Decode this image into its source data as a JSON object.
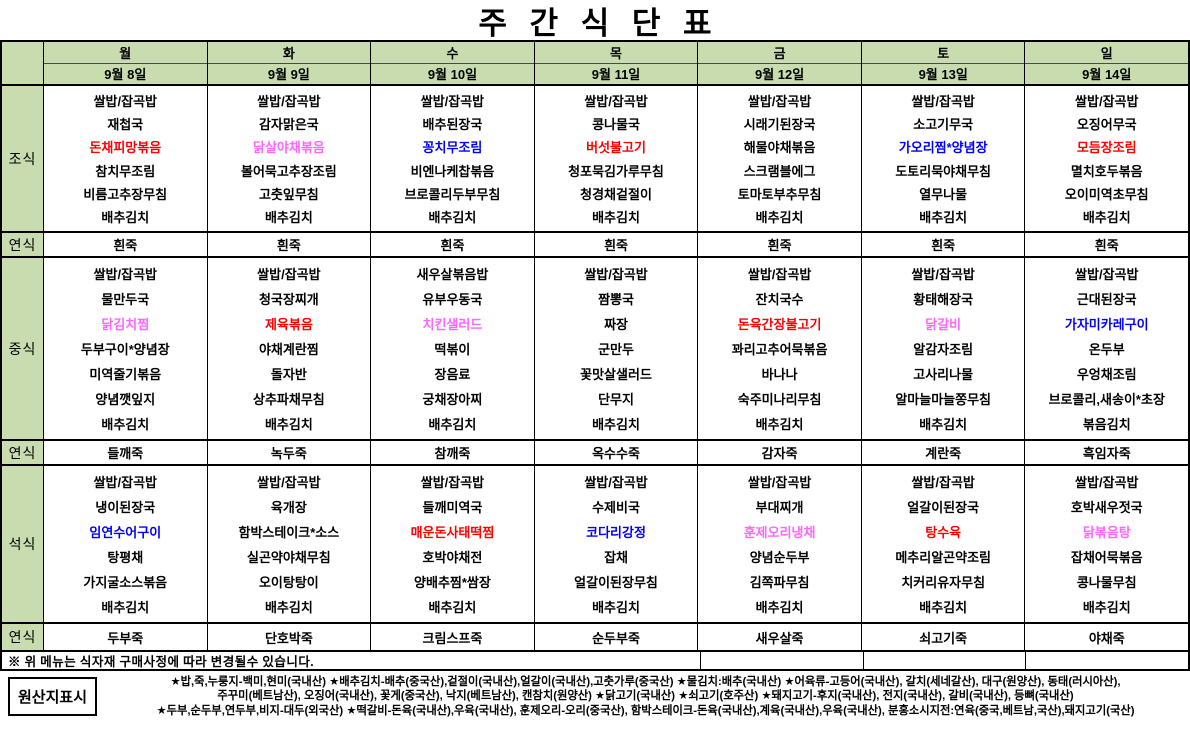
{
  "title": "주 간 식 단 표",
  "colors": {
    "red": "#ff0000",
    "pink": "#ff66ff",
    "blue": "#0000ff",
    "header_green": "#c9dcb0"
  },
  "days": [
    {
      "name": "월",
      "date": "9월 8일"
    },
    {
      "name": "화",
      "date": "9월 9일"
    },
    {
      "name": "수",
      "date": "9월 10일"
    },
    {
      "name": "목",
      "date": "9월 11일"
    },
    {
      "name": "금",
      "date": "9월 12일"
    },
    {
      "name": "토",
      "date": "9월 13일"
    },
    {
      "name": "일",
      "date": "9월 14일"
    }
  ],
  "sections": [
    {
      "label": "조식",
      "type": "meal",
      "columns": [
        [
          "쌀밥/잡곡밥",
          "재첩국",
          {
            "t": "돈채피망볶음",
            "c": "red"
          },
          "참치무조림",
          "비름고추장무침",
          "배추김치"
        ],
        [
          "쌀밥/잡곡밥",
          "감자맑은국",
          {
            "t": "닭살야채볶음",
            "c": "pink"
          },
          "볼어묵고추장조림",
          "고춧잎무침",
          "배추김치"
        ],
        [
          "쌀밥/잡곡밥",
          "배추된장국",
          {
            "t": "꽁치무조림",
            "c": "blue"
          },
          "비엔나케찹볶음",
          "브로콜리두부무침",
          "배추김치"
        ],
        [
          "쌀밥/잡곡밥",
          "콩나물국",
          {
            "t": "버섯불고기",
            "c": "red"
          },
          "청포묵김가루무침",
          "청경채겉절이",
          "배추김치"
        ],
        [
          "쌀밥/잡곡밥",
          "시래기된장국",
          "해물야채볶음",
          "스크램블에그",
          "토마토부추무침",
          "배추김치"
        ],
        [
          "쌀밥/잡곡밥",
          "소고기무국",
          {
            "t": "가오리찜*양념장",
            "c": "blue"
          },
          "도토리묵야채무침",
          "열무나물",
          "배추김치"
        ],
        [
          "쌀밥/잡곡밥",
          "오징어무국",
          {
            "t": "모듬장조림",
            "c": "red"
          },
          "멸치호두볶음",
          "오이미역초무침",
          "배추김치"
        ]
      ]
    },
    {
      "label": "연식",
      "type": "soft",
      "columns": [
        "흰죽",
        "흰죽",
        "흰죽",
        "흰죽",
        "흰죽",
        "흰죽",
        "흰죽"
      ]
    },
    {
      "label": "중식",
      "type": "meal",
      "columns": [
        [
          "쌀밥/잡곡밥",
          "물만두국",
          {
            "t": "닭김치찜",
            "c": "pink"
          },
          "두부구이*양념장",
          "미역줄기볶음",
          "양념깻잎지",
          "배추김치"
        ],
        [
          "쌀밥/잡곡밥",
          "청국장찌개",
          {
            "t": "제육볶음",
            "c": "red"
          },
          "야채계란찜",
          "돌자반",
          "상추파채무침",
          "배추김치"
        ],
        [
          "새우살볶음밥",
          "유부우동국",
          {
            "t": "치킨샐러드",
            "c": "pink"
          },
          "떡볶이",
          "장음료",
          "궁채장아찌",
          "배추김치"
        ],
        [
          "쌀밥/잡곡밥",
          "짬뽕국",
          "짜장",
          "군만두",
          "꽃맛살샐러드",
          "단무지",
          "배추김치"
        ],
        [
          "쌀밥/잡곡밥",
          "잔치국수",
          {
            "t": "돈육간장불고기",
            "c": "red"
          },
          "꽈리고추어묵볶음",
          "바나나",
          "숙주미나리무침",
          "배추김치"
        ],
        [
          "쌀밥/잡곡밥",
          "황태해장국",
          {
            "t": "닭갈비",
            "c": "pink"
          },
          "알감자조림",
          "고사리나물",
          "알마늘마늘쫑무침",
          "배추김치"
        ],
        [
          "쌀밥/잡곡밥",
          "근대된장국",
          {
            "t": "가자미카레구이",
            "c": "blue"
          },
          "온두부",
          "우엉채조림",
          "브로콜리,새송이*초장",
          "볶음김치"
        ]
      ]
    },
    {
      "label": "연식",
      "type": "soft",
      "columns": [
        "들깨죽",
        "녹두죽",
        "참깨죽",
        "옥수수죽",
        "감자죽",
        "계란죽",
        "흑임자죽"
      ]
    },
    {
      "label": "석식",
      "type": "meal",
      "columns": [
        [
          "쌀밥/잡곡밥",
          "냉이된장국",
          {
            "t": "임연수어구이",
            "c": "blue"
          },
          "탕평채",
          "가지굴소스볶음",
          "배추김치"
        ],
        [
          "쌀밥/잡곡밥",
          "육개장",
          "함박스테이크*소스",
          "실곤약야채무침",
          "오이탕탕이",
          "배추김치"
        ],
        [
          "쌀밥/잡곡밥",
          "들깨미역국",
          {
            "t": "매운돈사태떡찜",
            "c": "red"
          },
          "호박야채전",
          "양배추찜*쌈장",
          "배추김치"
        ],
        [
          "쌀밥/잡곡밥",
          "수제비국",
          {
            "t": "코다리강정",
            "c": "blue"
          },
          "잡채",
          "얼갈이된장무침",
          "배추김치"
        ],
        [
          "쌀밥/잡곡밥",
          "부대찌개",
          {
            "t": "훈제오리냉채",
            "c": "pink"
          },
          "양념순두부",
          "김쪽파무침",
          "배추김치"
        ],
        [
          "쌀밥/잡곡밥",
          "얼갈이된장국",
          {
            "t": "탕수육",
            "c": "red"
          },
          "메추리알곤약조림",
          "치커리유자무침",
          "배추김치"
        ],
        [
          "쌀밥/잡곡밥",
          "호박새우젓국",
          {
            "t": "닭볶음탕",
            "c": "pink"
          },
          "잡채어묵볶음",
          "콩나물무침",
          "배추김치"
        ]
      ]
    },
    {
      "label": "연식",
      "type": "soft",
      "columns": [
        "두부죽",
        "단호박죽",
        "크림스프죽",
        "순두부죽",
        "새우살죽",
        "쇠고기죽",
        "야채죽"
      ]
    }
  ],
  "note": "※ 위 메뉴는 식자재 구매사정에 따라 변경될수 있습니다.",
  "origin": {
    "label": "원산지표시",
    "lines": [
      "★밥,죽,누룽지-백미,현미(국내산) ★배추김치-배추(중국산),겉절이(국내산),얼갈이(국내산),고춧가루(중국산) ★물김치:배추(국내산) ★어육류-고등어(국내산), 갈치(세네갈산), 대구(원양산), 동태(러시아산),",
      "주꾸미(베트남산), 오징어(국내산), 꽃게(중국산), 낙지(베트남산), 캔참치(원양산) ★닭고기(국내산) ★쇠고기(호주산) ★돼지고기-후지(국내산), 전지(국내산), 갈비(국내산), 등뼈(국내산)",
      "★두부,순두부,연두부,비지-대두(외국산) ★떡갈비-돈육(국내산),우육(국내산), 훈제오리-오리(중국산), 함박스테이크-돈육(국내산),계육(국내산),우육(국내산), 분홍소시지전:연육(중국,베트남,국산),돼지고기(국산)"
    ]
  }
}
